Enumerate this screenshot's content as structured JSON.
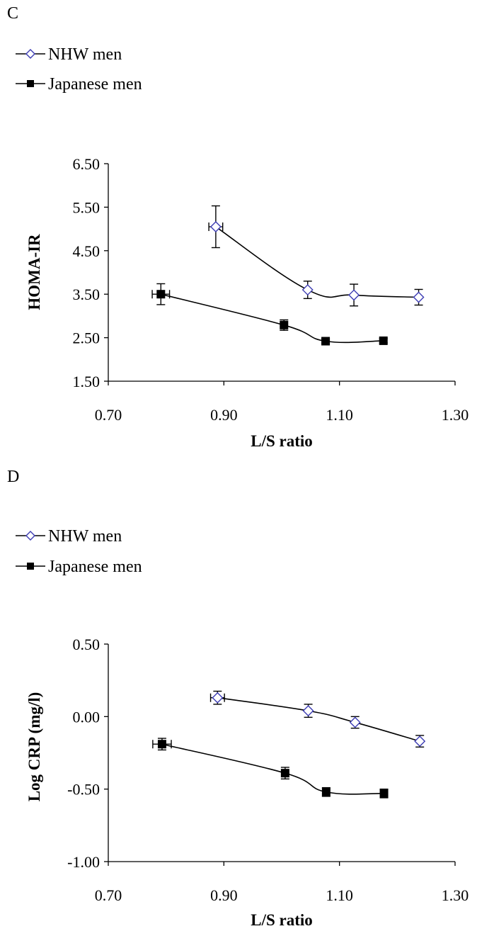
{
  "colors": {
    "nhw_marker": "#3b3bb3",
    "japanese_marker": "#000000",
    "lines": "#000000",
    "axes": "#000000"
  },
  "chart_data": [
    {
      "type": "line",
      "panel": "C",
      "title": "",
      "xlabel": "L/S ratio",
      "ylabel": "HOMA-IR",
      "xlim": [
        0.7,
        1.3
      ],
      "ylim": [
        1.5,
        6.5
      ],
      "xticks": [
        "0.70",
        "0.90",
        "1.10",
        "1.30"
      ],
      "yticks": [
        "1.50",
        "2.50",
        "3.50",
        "4.50",
        "5.50",
        "6.50"
      ],
      "grid": false,
      "legend": "top-left",
      "series": [
        {
          "name": "NHW men",
          "marker": "diamond-open",
          "points": [
            {
              "x": 0.886,
              "y": 5.05,
              "xerr": 0.012,
              "yerr": 0.48
            },
            {
              "x": 1.045,
              "y": 3.6,
              "xerr": 0.0,
              "yerr": 0.2
            },
            {
              "x": 1.125,
              "y": 3.48,
              "xerr": 0.0,
              "yerr": 0.25
            },
            {
              "x": 1.237,
              "y": 3.43,
              "xerr": 0.0,
              "yerr": 0.18
            }
          ]
        },
        {
          "name": "Japanese men",
          "marker": "square-filled",
          "points": [
            {
              "x": 0.791,
              "y": 3.5,
              "xerr": 0.015,
              "yerr": 0.24
            },
            {
              "x": 1.004,
              "y": 2.79,
              "xerr": 0.0,
              "yerr": 0.12
            },
            {
              "x": 1.076,
              "y": 2.42,
              "xerr": 0.0,
              "yerr": 0.05
            },
            {
              "x": 1.176,
              "y": 2.43,
              "xerr": 0.0,
              "yerr": 0.05
            }
          ]
        }
      ]
    },
    {
      "type": "line",
      "panel": "D",
      "title": "",
      "xlabel": "L/S ratio",
      "ylabel": "Log CRP (mg/l)",
      "xlim": [
        0.7,
        1.3
      ],
      "ylim": [
        -1.0,
        0.5
      ],
      "xticks": [
        "0.70",
        "0.90",
        "1.10",
        "1.30"
      ],
      "yticks": [
        "-1.00",
        "-0.50",
        "0.00",
        "0.50"
      ],
      "grid": false,
      "legend": "top-left",
      "series": [
        {
          "name": "NHW men",
          "marker": "diamond-open",
          "points": [
            {
              "x": 0.889,
              "y": 0.13,
              "xerr": 0.012,
              "yerr": 0.045
            },
            {
              "x": 1.046,
              "y": 0.04,
              "xerr": 0.0,
              "yerr": 0.045
            },
            {
              "x": 1.127,
              "y": -0.04,
              "xerr": 0.0,
              "yerr": 0.04
            },
            {
              "x": 1.239,
              "y": -0.17,
              "xerr": 0.0,
              "yerr": 0.04
            }
          ]
        },
        {
          "name": "Japanese men",
          "marker": "square-filled",
          "points": [
            {
              "x": 0.793,
              "y": -0.19,
              "xerr": 0.016,
              "yerr": 0.04
            },
            {
              "x": 1.006,
              "y": -0.39,
              "xerr": 0.0,
              "yerr": 0.04
            },
            {
              "x": 1.077,
              "y": -0.52,
              "xerr": 0.0,
              "yerr": 0.03
            },
            {
              "x": 1.177,
              "y": -0.53,
              "xerr": 0.0,
              "yerr": 0.03
            }
          ]
        }
      ]
    }
  ]
}
